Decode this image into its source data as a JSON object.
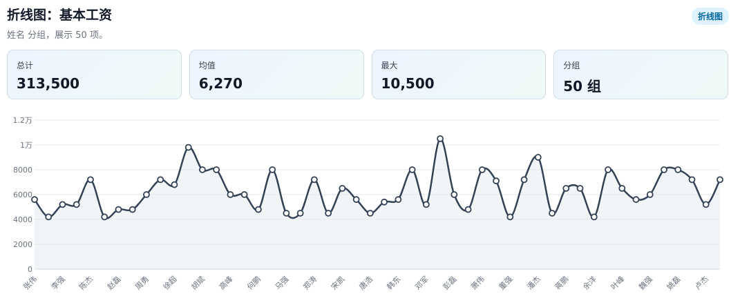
{
  "header": {
    "title": "折线图：基本工资",
    "subtitle": "姓名 分组，展示 50 项。",
    "badge": "折线图"
  },
  "stats": [
    {
      "label": "总计",
      "value": "313,500"
    },
    {
      "label": "均值",
      "value": "6,270"
    },
    {
      "label": "最大",
      "value": "10,500"
    },
    {
      "label": "分组",
      "value": "50 组"
    }
  ],
  "colors": {
    "line": "#334155",
    "grid": "#e5e7eb",
    "area": "#e2e8f0"
  },
  "chart_data": {
    "type": "line",
    "title": "",
    "xlabel": "",
    "ylabel": "",
    "ylim": [
      0,
      12000
    ],
    "yticks": [
      0,
      2000,
      4000,
      6000,
      8000,
      10000,
      12000
    ],
    "ytick_labels": [
      "0",
      "2000",
      "4000",
      "6000",
      "8000",
      "1万",
      "1.2万"
    ],
    "grid": true,
    "x_tick_labels": [
      "张伟",
      "李强",
      "陈杰",
      "赵磊",
      "周勇",
      "徐超",
      "胡斌",
      "高峰",
      "何鹏",
      "马强",
      "郑涛",
      "宋凯",
      "唐浩",
      "韩东",
      "邓军",
      "彭磊",
      "萧伟",
      "董强",
      "潘杰",
      "蒋鹏",
      "余洋",
      "叶峰",
      "魏强",
      "姚磊",
      "卢杰"
    ],
    "values": [
      5600,
      4200,
      5200,
      5200,
      7200,
      4200,
      4800,
      4800,
      6000,
      7200,
      6800,
      9800,
      8000,
      8000,
      6000,
      6000,
      4800,
      8000,
      4500,
      4500,
      7200,
      4500,
      6500,
      5600,
      4500,
      5400,
      5600,
      8000,
      5200,
      10500,
      6000,
      4800,
      8000,
      7100,
      4200,
      7200,
      9000,
      4500,
      6500,
      6500,
      4200,
      8000,
      6500,
      5600,
      6000,
      8000,
      8000,
      7200,
      5200,
      7200
    ]
  }
}
